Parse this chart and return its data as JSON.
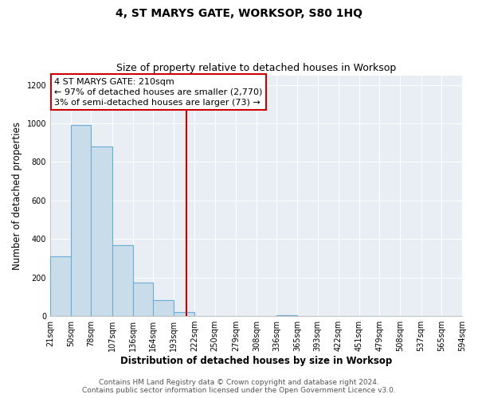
{
  "title": "4, ST MARYS GATE, WORKSOP, S80 1HQ",
  "subtitle": "Size of property relative to detached houses in Worksop",
  "xlabel": "Distribution of detached houses by size in Worksop",
  "ylabel": "Number of detached properties",
  "bin_edges": [
    21,
    50,
    78,
    107,
    136,
    164,
    193,
    222,
    250,
    279,
    308,
    336,
    365,
    393,
    422,
    451,
    479,
    508,
    537,
    565,
    594
  ],
  "bin_counts": [
    310,
    990,
    880,
    370,
    175,
    85,
    20,
    0,
    0,
    0,
    0,
    5,
    0,
    0,
    0,
    0,
    0,
    0,
    0,
    0
  ],
  "bar_color": "#c9dcea",
  "bar_edge_color": "#6aaed6",
  "vline_x": 210,
  "vline_color": "#cc0000",
  "annotation_line1": "4 ST MARYS GATE: 210sqm",
  "annotation_line2": "← 97% of detached houses are smaller (2,770)",
  "annotation_line3": "3% of semi-detached houses are larger (73) →",
  "box_edge_color": "#cc0000",
  "ylim": [
    0,
    1250
  ],
  "yticks": [
    0,
    200,
    400,
    600,
    800,
    1000,
    1200
  ],
  "tick_labels": [
    "21sqm",
    "50sqm",
    "78sqm",
    "107sqm",
    "136sqm",
    "164sqm",
    "193sqm",
    "222sqm",
    "250sqm",
    "279sqm",
    "308sqm",
    "336sqm",
    "365sqm",
    "393sqm",
    "422sqm",
    "451sqm",
    "479sqm",
    "508sqm",
    "537sqm",
    "565sqm",
    "594sqm"
  ],
  "footer_line1": "Contains HM Land Registry data © Crown copyright and database right 2024.",
  "footer_line2": "Contains public sector information licensed under the Open Government Licence v3.0.",
  "plot_bg_color": "#e8eef4",
  "fig_bg_color": "#ffffff",
  "grid_color": "#ffffff",
  "title_fontsize": 10,
  "subtitle_fontsize": 9,
  "axis_label_fontsize": 8.5,
  "tick_fontsize": 7,
  "footer_fontsize": 6.5,
  "annotation_fontsize": 8
}
